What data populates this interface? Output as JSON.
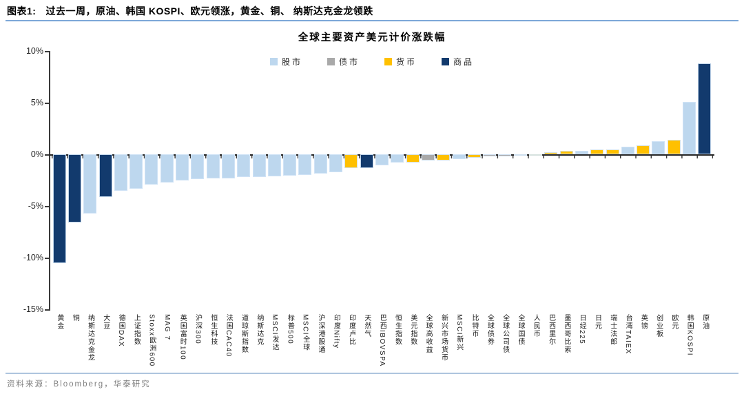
{
  "header": {
    "label": "图表1:",
    "title": "过去一周，原油、韩国 KOSPI、欧元领涨，黄金、铜、 纳斯达克金龙领跌"
  },
  "source": {
    "text": "资料来源：Bloomberg，华泰研究"
  },
  "chart_data": {
    "type": "bar",
    "title": "全球主要资产美元计价涨跌幅",
    "unit": "%",
    "ylim": [
      -15,
      10
    ],
    "y_ticks": [
      "10%",
      "5%",
      "0%",
      "-5%",
      "-10%",
      "-15%"
    ],
    "grid": false,
    "legend_position": "top",
    "legend": [
      {
        "label": "股市",
        "color": "#BDD7EE"
      },
      {
        "label": "债市",
        "color": "#A9A9A9"
      },
      {
        "label": "货币",
        "color": "#FFC000"
      },
      {
        "label": "商品",
        "color": "#123A6D"
      }
    ],
    "bars": [
      {
        "label": "黄金",
        "category": "商品",
        "value": -10.5
      },
      {
        "label": "铜",
        "category": "商品",
        "value": -6.6
      },
      {
        "label": "纳斯达克金龙",
        "category": "股市",
        "value": -5.7
      },
      {
        "label": "大豆",
        "category": "商品",
        "value": -4.1
      },
      {
        "label": "德国DAX",
        "category": "股市",
        "value": -3.5
      },
      {
        "label": "上证指数",
        "category": "股市",
        "value": -3.3
      },
      {
        "label": "Stoxx欧洲600",
        "category": "股市",
        "value": -2.9
      },
      {
        "label": "MAG 7",
        "category": "股市",
        "value": -2.75
      },
      {
        "label": "英国富时100",
        "category": "股市",
        "value": -2.55
      },
      {
        "label": "沪深300",
        "category": "股市",
        "value": -2.4
      },
      {
        "label": "恒生科技",
        "category": "股市",
        "value": -2.35
      },
      {
        "label": "法国CAC40",
        "category": "股市",
        "value": -2.3
      },
      {
        "label": "道琼斯指数",
        "category": "股市",
        "value": -2.2
      },
      {
        "label": "纳斯达克",
        "category": "股市",
        "value": -2.2
      },
      {
        "label": "MSCI发达",
        "category": "股市",
        "value": -2.1
      },
      {
        "label": "标普500",
        "category": "股市",
        "value": -2.05
      },
      {
        "label": "MSCI全球",
        "category": "股市",
        "value": -2.0
      },
      {
        "label": "沪深港股通",
        "category": "股市",
        "value": -1.85
      },
      {
        "label": "印度Nifty",
        "category": "股市",
        "value": -1.7
      },
      {
        "label": "印度卢比",
        "category": "货币",
        "value": -1.35
      },
      {
        "label": "天然气",
        "category": "商品",
        "value": -1.3
      },
      {
        "label": "巴西IBOVSPA",
        "category": "股市",
        "value": -1.05
      },
      {
        "label": "恒生指数",
        "category": "股市",
        "value": -0.8
      },
      {
        "label": "美元指数",
        "category": "货币",
        "value": -0.8
      },
      {
        "label": "全球高收益",
        "category": "债市",
        "value": -0.6
      },
      {
        "label": "新兴市场货币",
        "category": "货币",
        "value": -0.6
      },
      {
        "label": "MSCI新兴",
        "category": "股市",
        "value": -0.45
      },
      {
        "label": "比特币",
        "category": "货币",
        "value": -0.3
      },
      {
        "label": "全球债券",
        "category": "债市",
        "value": -0.22
      },
      {
        "label": "全球公司债",
        "category": "债市",
        "value": -0.2
      },
      {
        "label": "全球国债",
        "category": "债市",
        "value": -0.08
      },
      {
        "label": "人民币",
        "category": "货币",
        "value": -0.05
      },
      {
        "label": "巴西里尔",
        "category": "货币",
        "value": 0.2
      },
      {
        "label": "墨西哥比索",
        "category": "货币",
        "value": 0.32
      },
      {
        "label": "日经225",
        "category": "股市",
        "value": 0.35
      },
      {
        "label": "日元",
        "category": "货币",
        "value": 0.45
      },
      {
        "label": "瑞士法郎",
        "category": "货币",
        "value": 0.5
      },
      {
        "label": "台湾TAIEX",
        "category": "股市",
        "value": 0.75
      },
      {
        "label": "英镑",
        "category": "货币",
        "value": 0.9
      },
      {
        "label": "创业板",
        "category": "股市",
        "value": 1.25
      },
      {
        "label": "欧元",
        "category": "货币",
        "value": 1.4
      },
      {
        "label": "韩国KOSPI",
        "category": "股市",
        "value": 5.1
      },
      {
        "label": "原油",
        "category": "商品",
        "value": 8.8
      }
    ]
  }
}
